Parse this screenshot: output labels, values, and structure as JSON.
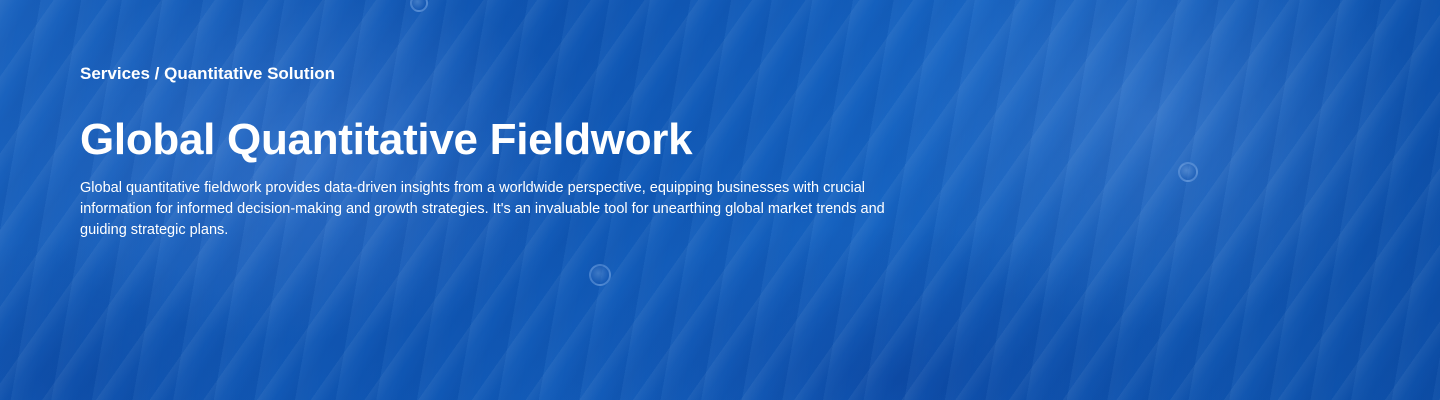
{
  "hero": {
    "breadcrumb": "Services / Quantitative Solution",
    "title": "Global Quantitative Fieldwork",
    "description": "Global quantitative fieldwork provides data-driven insights from a worldwide perspective, equipping businesses with crucial information for informed decision-making and growth strategies. It's an invaluable tool for unearthing global market trends and guiding strategic plans.",
    "background_color": "#1158b6",
    "text_color": "#ffffff"
  }
}
